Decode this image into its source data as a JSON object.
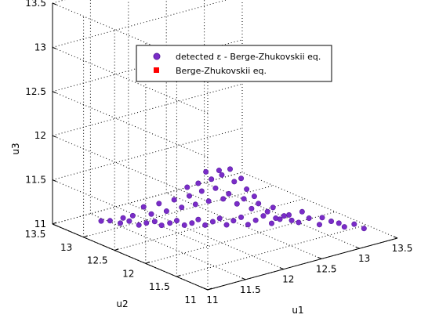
{
  "chart_data": {
    "type": "scatter",
    "projection": "3d",
    "xlabel": "u1",
    "ylabel": "u2",
    "zlabel": "u3",
    "xlim": [
      11,
      13.5
    ],
    "ylim": [
      11,
      13.5
    ],
    "zlim": [
      11,
      13.5
    ],
    "xticks": [
      "11",
      "11.5",
      "12",
      "12.5",
      "13",
      "13.5"
    ],
    "yticks": [
      "11",
      "11.5",
      "12",
      "12.5",
      "13",
      "13.5"
    ],
    "zticks": [
      "11",
      "11.5",
      "12",
      "12.5",
      "13",
      "13.5"
    ],
    "grid": true,
    "legend_position": "top",
    "series": [
      {
        "name": "detected ε - Berge-Zhukovskii eq.",
        "marker": "circle",
        "color": "#7a2cc8",
        "points": [
          [
            11.33,
            13.12,
            11.07
          ],
          [
            11.39,
            13.05,
            11.08
          ],
          [
            11.46,
            12.97,
            11.06
          ],
          [
            11.52,
            12.9,
            11.09
          ],
          [
            11.59,
            12.83,
            11.05
          ],
          [
            11.64,
            12.77,
            11.08
          ],
          [
            11.7,
            12.71,
            11.1
          ],
          [
            11.75,
            12.66,
            11.06
          ],
          [
            11.81,
            12.6,
            11.09
          ],
          [
            11.86,
            12.55,
            11.12
          ],
          [
            11.92,
            12.5,
            11.07
          ],
          [
            11.97,
            12.44,
            11.1
          ],
          [
            12.02,
            12.4,
            11.14
          ],
          [
            12.07,
            12.35,
            11.08
          ],
          [
            12.13,
            12.3,
            11.12
          ],
          [
            12.18,
            12.25,
            11.16
          ],
          [
            12.23,
            12.2,
            11.09
          ],
          [
            12.28,
            12.15,
            11.14
          ],
          [
            12.34,
            12.1,
            11.18
          ],
          [
            12.39,
            12.05,
            11.1
          ],
          [
            12.45,
            12.0,
            11.15
          ],
          [
            12.51,
            11.95,
            11.2
          ],
          [
            12.57,
            11.89,
            11.12
          ],
          [
            12.63,
            11.83,
            11.17
          ],
          [
            12.7,
            11.77,
            11.22
          ],
          [
            12.77,
            11.7,
            11.14
          ],
          [
            12.85,
            11.63,
            11.19
          ],
          [
            12.93,
            11.56,
            11.12
          ],
          [
            13.02,
            11.48,
            11.16
          ],
          [
            13.12,
            11.39,
            11.1
          ],
          [
            13.2,
            11.33,
            11.13
          ],
          [
            13.28,
            11.27,
            11.08
          ],
          [
            11.55,
            12.88,
            11.15
          ],
          [
            11.68,
            12.74,
            11.18
          ],
          [
            11.79,
            12.63,
            11.22
          ],
          [
            11.9,
            12.52,
            11.27
          ],
          [
            12.0,
            12.42,
            11.31
          ],
          [
            12.1,
            12.33,
            11.35
          ],
          [
            12.21,
            12.23,
            11.38
          ],
          [
            12.31,
            12.13,
            11.33
          ],
          [
            12.42,
            12.03,
            11.28
          ],
          [
            12.54,
            11.92,
            11.25
          ],
          [
            12.66,
            11.8,
            11.21
          ],
          [
            12.8,
            11.68,
            11.26
          ],
          [
            11.85,
            12.58,
            11.35
          ],
          [
            11.96,
            12.47,
            11.4
          ],
          [
            12.05,
            12.38,
            11.46
          ],
          [
            12.15,
            12.28,
            11.5
          ],
          [
            12.25,
            12.19,
            11.44
          ],
          [
            12.36,
            12.08,
            11.39
          ],
          [
            12.47,
            11.98,
            11.34
          ],
          [
            12.58,
            11.88,
            11.3
          ],
          [
            12.02,
            12.4,
            11.55
          ],
          [
            12.12,
            12.31,
            11.6
          ],
          [
            12.2,
            12.24,
            11.65
          ],
          [
            12.29,
            12.15,
            11.58
          ],
          [
            12.38,
            12.06,
            11.5
          ],
          [
            11.94,
            12.48,
            11.5
          ],
          [
            12.18,
            12.26,
            11.7
          ],
          [
            12.26,
            12.18,
            11.72
          ],
          [
            12.08,
            12.35,
            11.68
          ],
          [
            12.34,
            12.1,
            11.62
          ],
          [
            11.62,
            12.79,
            11.26
          ],
          [
            11.74,
            12.69,
            11.3
          ],
          [
            12.44,
            12.01,
            11.42
          ],
          [
            12.6,
            11.86,
            11.18
          ],
          [
            12.72,
            11.75,
            11.16
          ],
          [
            11.48,
            12.95,
            11.12
          ],
          [
            12.95,
            11.54,
            11.2
          ],
          [
            13.08,
            11.43,
            11.14
          ]
        ]
      },
      {
        "name": "Berge-Zhukovskii eq.",
        "marker": "square",
        "color": "#ff0000",
        "points": []
      }
    ]
  }
}
